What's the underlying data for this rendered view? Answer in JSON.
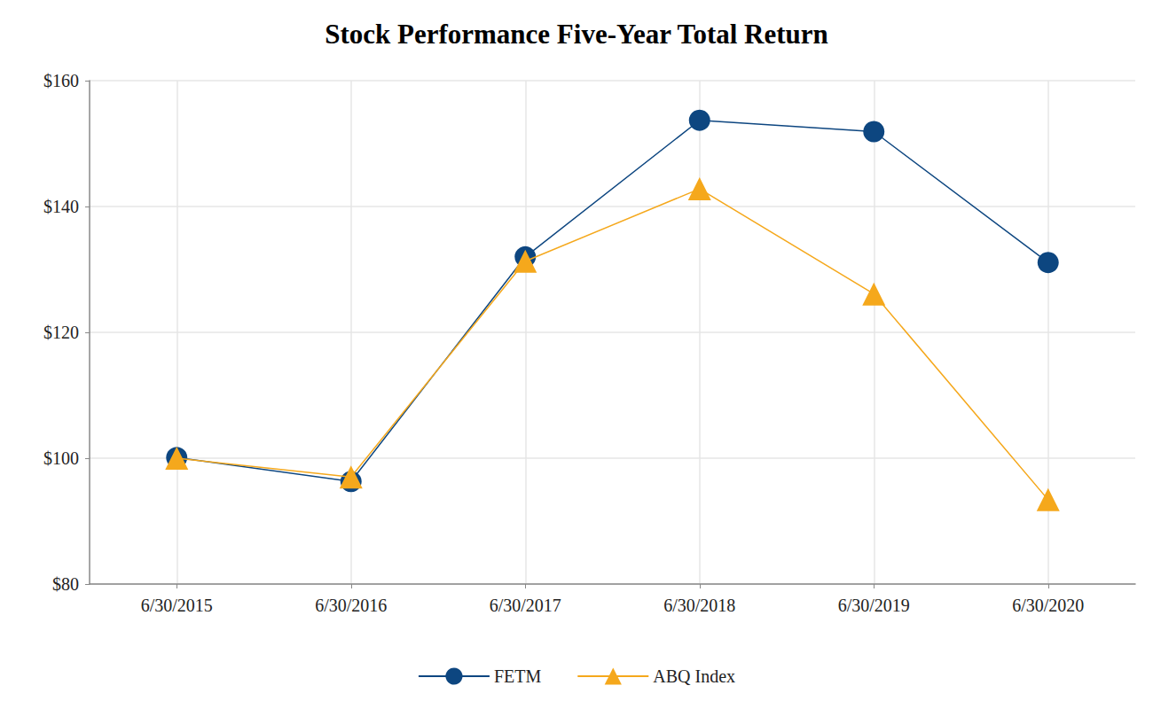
{
  "chart_data": {
    "type": "line",
    "title": "Stock Performance Five-Year Total Return",
    "categories": [
      "6/30/2015",
      "6/30/2016",
      "6/30/2017",
      "6/30/2018",
      "6/30/2019",
      "6/30/2020"
    ],
    "series": [
      {
        "name": "FETM",
        "color": "#0d4680",
        "marker": "circle",
        "values": [
          100.1,
          96.3,
          132.0,
          153.7,
          151.9,
          131.1
        ]
      },
      {
        "name": "ABQ Index",
        "color": "#f5a81c",
        "marker": "triangle",
        "values": [
          100.0,
          97.0,
          131.3,
          142.8,
          126.1,
          93.4
        ]
      }
    ],
    "ylim": [
      80,
      160
    ],
    "yticks": [
      {
        "value": 80,
        "label": "$80"
      },
      {
        "value": 100,
        "label": "$100"
      },
      {
        "value": 120,
        "label": "$120"
      },
      {
        "value": 140,
        "label": "$140"
      },
      {
        "value": 160,
        "label": "$160"
      }
    ],
    "grid": true,
    "legend": "bottom"
  }
}
